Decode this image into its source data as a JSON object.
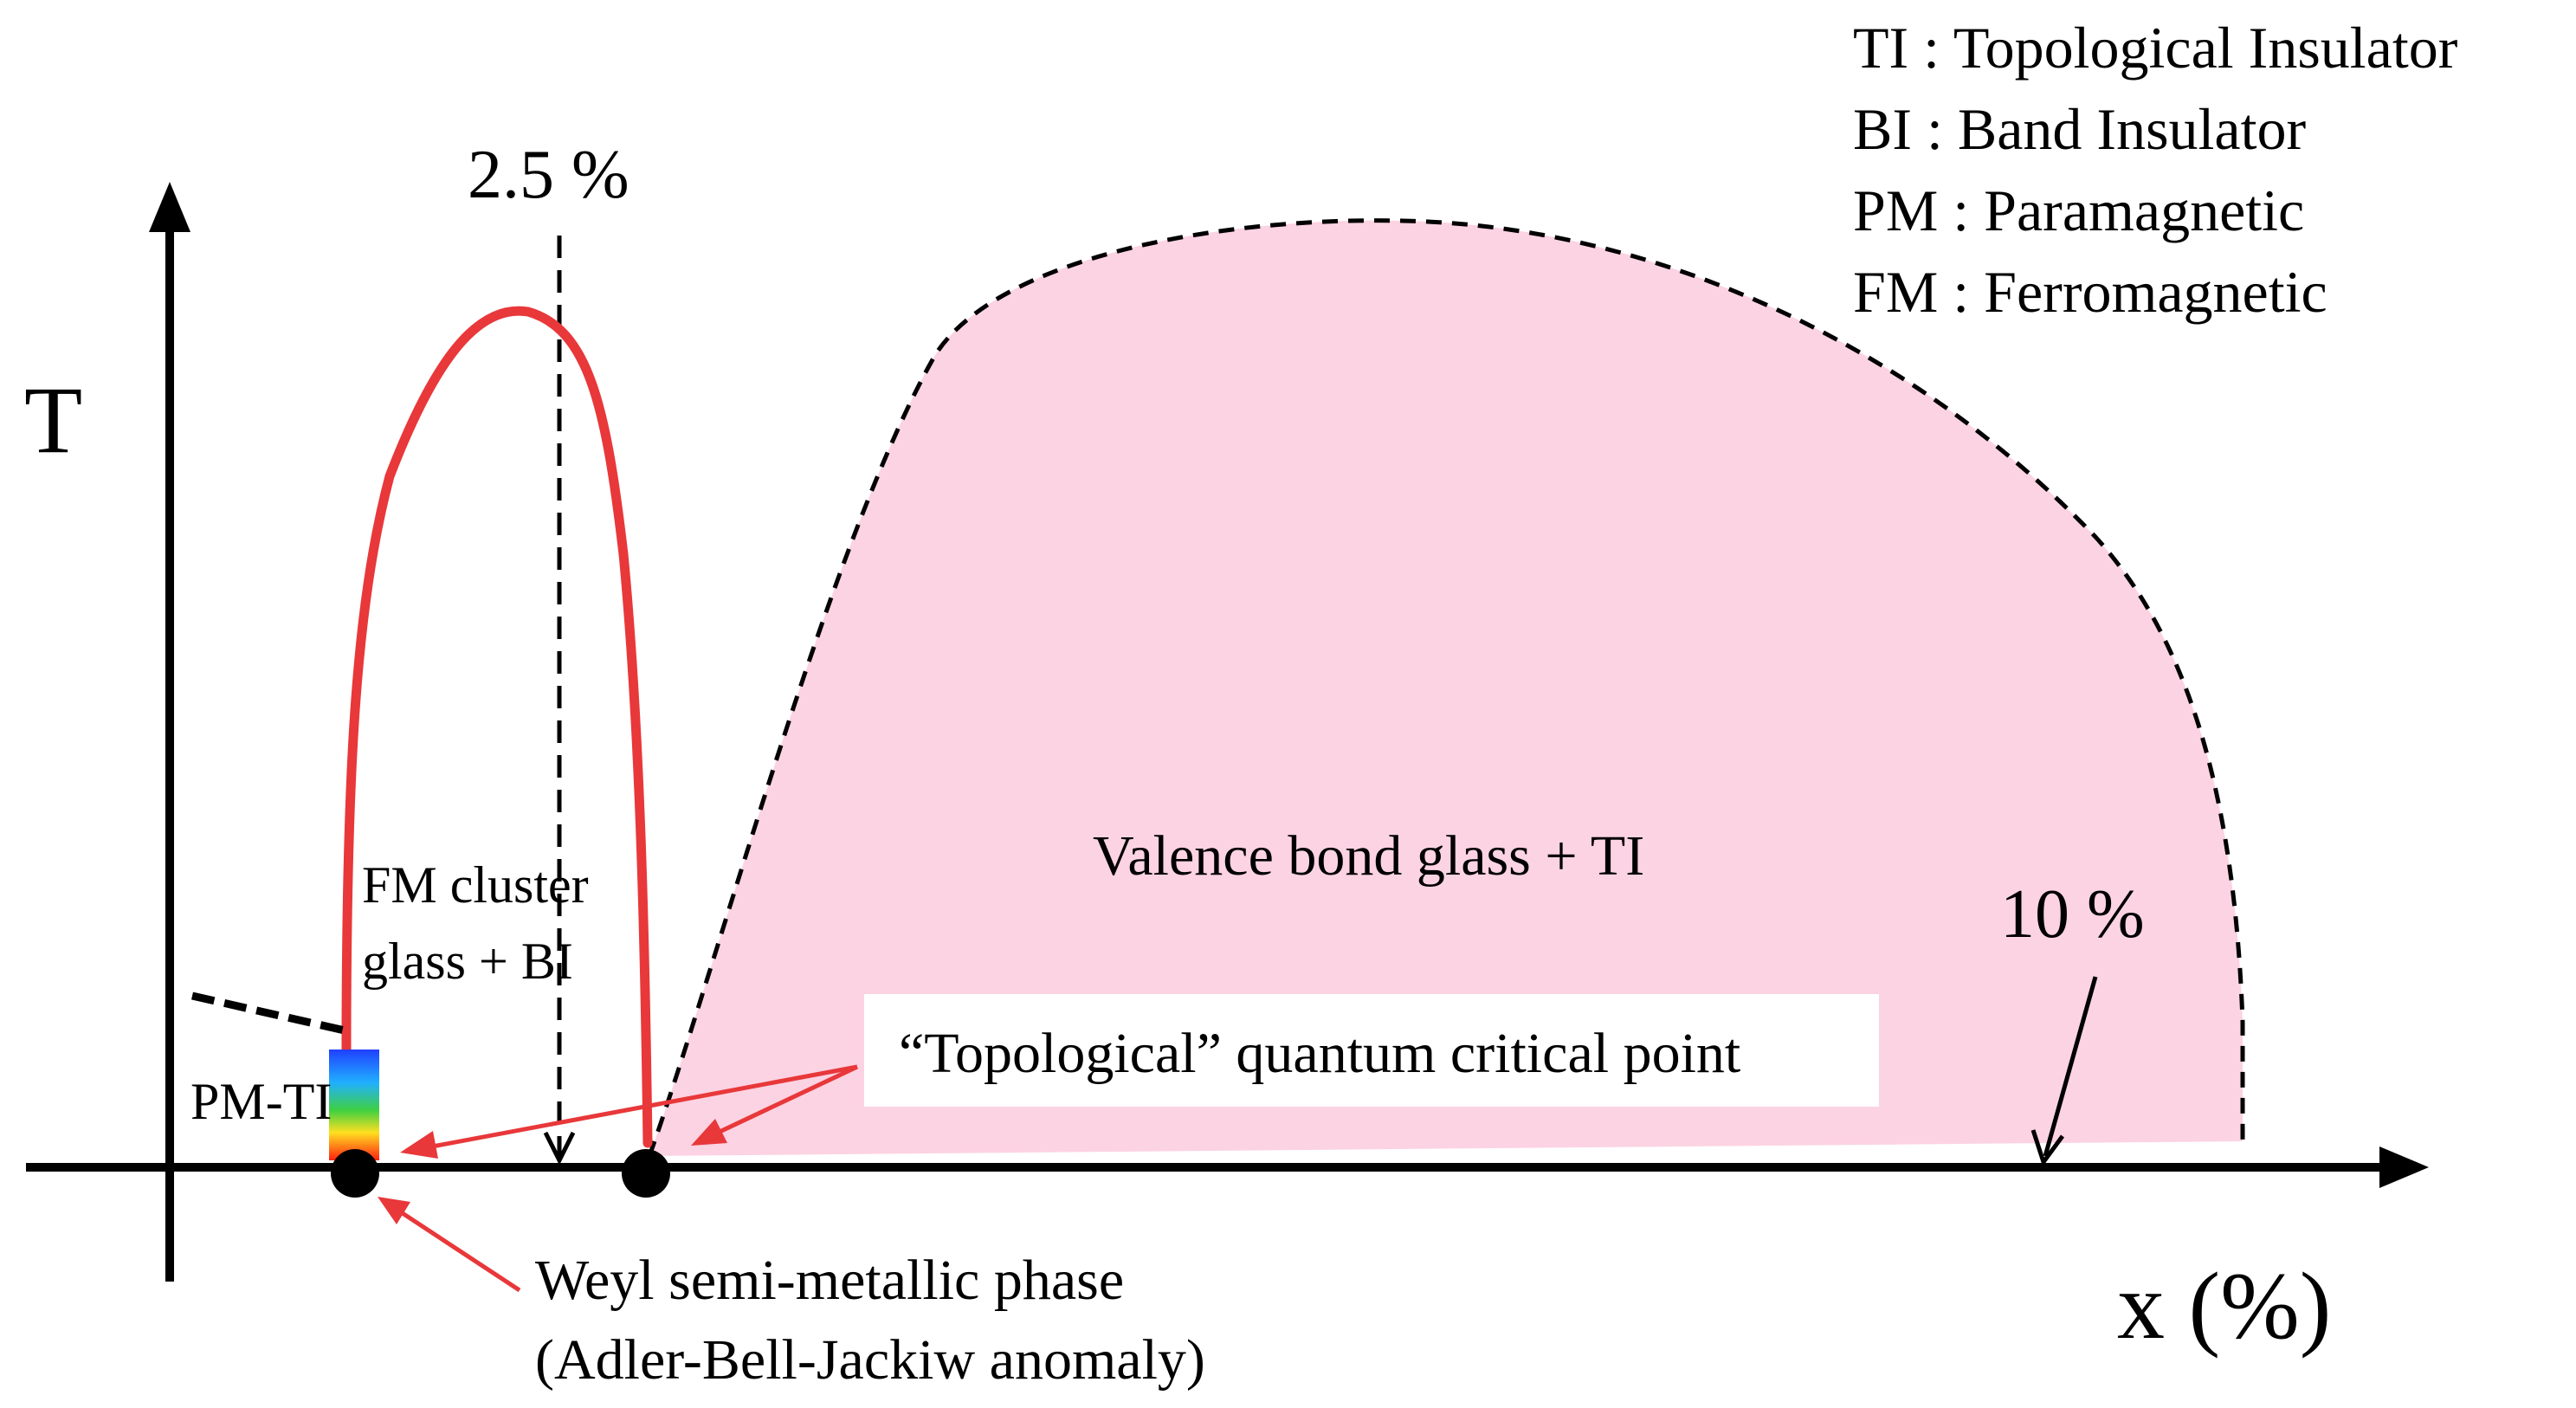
{
  "axes": {
    "y_label": "T",
    "x_label": "x (%)"
  },
  "legend": [
    "TI : Topological Insulator",
    "BI : Band Insulator",
    "PM : Paramagnetic",
    "FM : Ferromagnetic"
  ],
  "markers": {
    "left_concentration": "2.5 %",
    "right_concentration": "10 %"
  },
  "regions": {
    "fm_cluster_line1": "FM cluster",
    "fm_cluster_line2": "glass + BI",
    "pm_ti": "PM-TI",
    "valence_bond": "Valence bond glass + TI"
  },
  "annotations": {
    "qcp": "“Topological” quantum critical point",
    "weyl_line1": "Weyl semi-metallic phase",
    "weyl_line2": "(Adler-Bell-Jackiw anomaly)"
  },
  "colors": {
    "fm_boundary": "#e8383a",
    "vbg_fill": "#fcd3e3",
    "axis": "#000000",
    "annotation_arrow": "#e8383a"
  }
}
